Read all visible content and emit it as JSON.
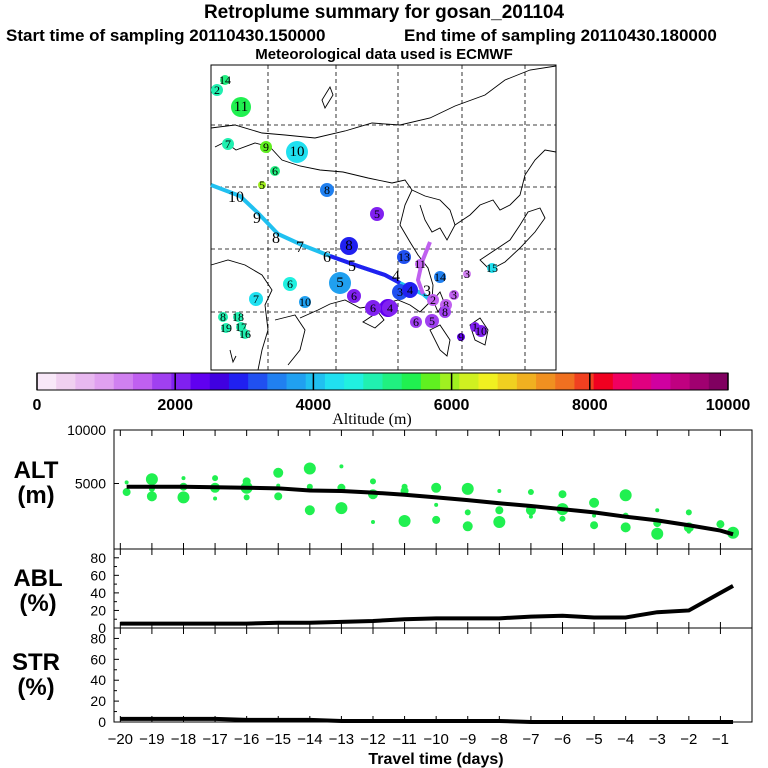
{
  "header": {
    "title": "Retroplume summary for gosan_201104",
    "start_label": "Start time of sampling 20110430.150000",
    "end_label": "End time of sampling 20110430.180000",
    "met_label": "Meteorological data used is ECMWF"
  },
  "colorbar": {
    "tick_labels": [
      "0",
      "2000",
      "4000",
      "6000",
      "8000",
      "10000"
    ],
    "label": "Altitude (m)",
    "colors": [
      "#f8e8f8",
      "#f0d0f0",
      "#e8b8f0",
      "#e0a0f0",
      "#d080f0",
      "#c060f0",
      "#a040f0",
      "#8020f0",
      "#6000f0",
      "#4000e0",
      "#2020f0",
      "#2050f0",
      "#2080f0",
      "#20a0f0",
      "#20c0f0",
      "#20e0f0",
      "#20f0e0",
      "#20f0b0",
      "#20f080",
      "#20f050",
      "#60f020",
      "#a0f020",
      "#d0f020",
      "#f0f020",
      "#f0d020",
      "#f0b020",
      "#f09020",
      "#f07020",
      "#f04020",
      "#f00020",
      "#f00060",
      "#e00080",
      "#d000a0",
      "#c00080",
      "#a00070",
      "#800060"
    ]
  },
  "map": {
    "trajectory_labels": [
      "10",
      "9",
      "8",
      "7",
      "6",
      "5",
      "4",
      "3"
    ],
    "cluster_markers": [
      {
        "label": "14",
        "color": "#20f080"
      },
      {
        "label": "2",
        "color": "#20f0b0"
      },
      {
        "label": "11",
        "color": "#20f050"
      },
      {
        "label": "7",
        "color": "#20f0b0"
      },
      {
        "label": "9",
        "color": "#60f020"
      },
      {
        "label": "10",
        "color": "#20e0f0"
      },
      {
        "label": "6",
        "color": "#20f080"
      },
      {
        "label": "5",
        "color": "#a0f020"
      },
      {
        "label": "8",
        "color": "#2080f0"
      },
      {
        "label": "5",
        "color": "#8020f0"
      },
      {
        "label": "8",
        "color": "#2020f0"
      },
      {
        "label": "13",
        "color": "#2050f0"
      },
      {
        "label": "6",
        "color": "#20f0e0"
      },
      {
        "label": "7",
        "color": "#20e0f0"
      },
      {
        "label": "5",
        "color": "#20a0f0"
      },
      {
        "label": "10",
        "color": "#20a0f0"
      },
      {
        "label": "6",
        "color": "#8020f0"
      },
      {
        "label": "7",
        "color": "#6000f0"
      },
      {
        "label": "6",
        "color": "#8020f0"
      },
      {
        "label": "4",
        "color": "#8020f0"
      },
      {
        "label": "3",
        "color": "#2050f0"
      },
      {
        "label": "4",
        "color": "#2020f0"
      },
      {
        "label": "8",
        "color": "#c060f0"
      },
      {
        "label": "3",
        "color": "#c060f0"
      },
      {
        "label": "2",
        "color": "#c060f0"
      },
      {
        "label": "11",
        "color": "#c060f0"
      },
      {
        "label": "3",
        "color": "#d080f0"
      },
      {
        "label": "15",
        "color": "#20e0f0"
      },
      {
        "label": "14",
        "color": "#2080f0"
      },
      {
        "label": "6",
        "color": "#a040f0"
      },
      {
        "label": "5",
        "color": "#a040f0"
      },
      {
        "label": "8",
        "color": "#a040f0"
      },
      {
        "label": "1",
        "color": "#8020f0"
      },
      {
        "label": "10",
        "color": "#8020f0"
      },
      {
        "label": "9",
        "color": "#6000f0"
      },
      {
        "label": "8",
        "color": "#20f0b0"
      },
      {
        "label": "18",
        "color": "#20f0b0"
      },
      {
        "label": "19",
        "color": "#20f0b0"
      },
      {
        "label": "17",
        "color": "#20f0b0"
      },
      {
        "label": "16",
        "color": "#20f0b0"
      }
    ]
  },
  "chart_data": [
    {
      "type": "scatter",
      "panel": "ALT",
      "ylabel": "ALT\n(m)",
      "ylim": [
        0,
        10000
      ],
      "yticks": [
        "10000",
        "5000"
      ],
      "line": {
        "x": [
          -19.8,
          -19,
          -18,
          -17,
          -16,
          -15,
          -14,
          -13,
          -12,
          -11,
          -10,
          -9,
          -8,
          -7,
          -6,
          -5,
          -4,
          -3,
          -2,
          -1,
          -0.6
        ],
        "y": [
          4700,
          4700,
          4700,
          4650,
          4600,
          4550,
          4350,
          4300,
          4150,
          3950,
          3700,
          3450,
          3150,
          2900,
          2600,
          2300,
          1900,
          1550,
          1100,
          600,
          250
        ]
      },
      "points": {
        "x": [
          -19.8,
          -19.8,
          -19,
          -19,
          -19,
          -18,
          -18,
          -18,
          -17,
          -17,
          -17,
          -16,
          -16,
          -16,
          -15,
          -15,
          -15,
          -14,
          -14,
          -14,
          -13,
          -13,
          -13,
          -12,
          -12,
          -12,
          -11,
          -11,
          -11,
          -10,
          -10,
          -10,
          -9,
          -9,
          -9,
          -8,
          -8,
          -8,
          -7,
          -7,
          -7,
          -6,
          -6,
          -6,
          -5,
          -5,
          -5,
          -4,
          -4,
          -4,
          -3,
          -3,
          -3,
          -2,
          -2,
          -2,
          -1,
          -0.6
        ],
        "y": [
          5100,
          4200,
          5400,
          4500,
          3800,
          5500,
          4700,
          3700,
          5500,
          4600,
          3600,
          5200,
          4600,
          3700,
          6000,
          4800,
          3800,
          6400,
          4700,
          2500,
          6600,
          4600,
          2700,
          5200,
          4000,
          1400,
          4300,
          1500,
          4700,
          4600,
          3000,
          1600,
          4500,
          2300,
          1000,
          4300,
          2500,
          1400,
          4200,
          2500,
          1900,
          4000,
          2600,
          1700,
          3200,
          2000,
          1100,
          3900,
          2000,
          900,
          2500,
          1300,
          300,
          2300,
          900,
          500,
          1200,
          400
        ]
      }
    },
    {
      "type": "line",
      "panel": "ABL",
      "ylabel": "ABL\n(%)",
      "ylim": [
        0,
        90
      ],
      "yticks": [
        "80",
        "60",
        "40",
        "20",
        "0"
      ],
      "x": [
        -20,
        -19,
        -18,
        -17,
        -16,
        -15,
        -14,
        -13,
        -12,
        -11,
        -10,
        -9,
        -8,
        -7,
        -6,
        -5,
        -4,
        -3,
        -2,
        -1,
        -0.6
      ],
      "y": [
        5,
        5,
        5,
        5,
        5,
        6,
        6,
        7,
        8,
        10,
        11,
        11,
        11,
        13,
        14,
        12,
        12,
        18,
        20,
        40,
        48
      ]
    },
    {
      "type": "line",
      "panel": "STR",
      "ylabel": "STR\n(%)",
      "ylim": [
        0,
        90
      ],
      "yticks": [
        "80",
        "60",
        "40",
        "20",
        "0"
      ],
      "x": [
        -20,
        -19,
        -18,
        -17,
        -16,
        -15,
        -14,
        -13,
        -12,
        -11,
        -10,
        -9,
        -8,
        -7,
        -6,
        -5,
        -4,
        -3,
        -2,
        -1,
        -0.6
      ],
      "y": [
        3,
        3,
        3,
        3,
        2,
        2,
        2,
        1,
        1,
        1,
        1,
        1,
        1,
        0,
        0,
        0,
        0,
        0,
        0,
        0,
        0
      ],
      "xlabel": "Travel time (days)",
      "xticks": [
        "−20",
        "−19",
        "−18",
        "−17",
        "−16",
        "−15",
        "−14",
        "−13",
        "−12",
        "−11",
        "−10",
        "−9",
        "−8",
        "−7",
        "−6",
        "−5",
        "−4",
        "−3",
        "−2",
        "−1"
      ]
    }
  ]
}
